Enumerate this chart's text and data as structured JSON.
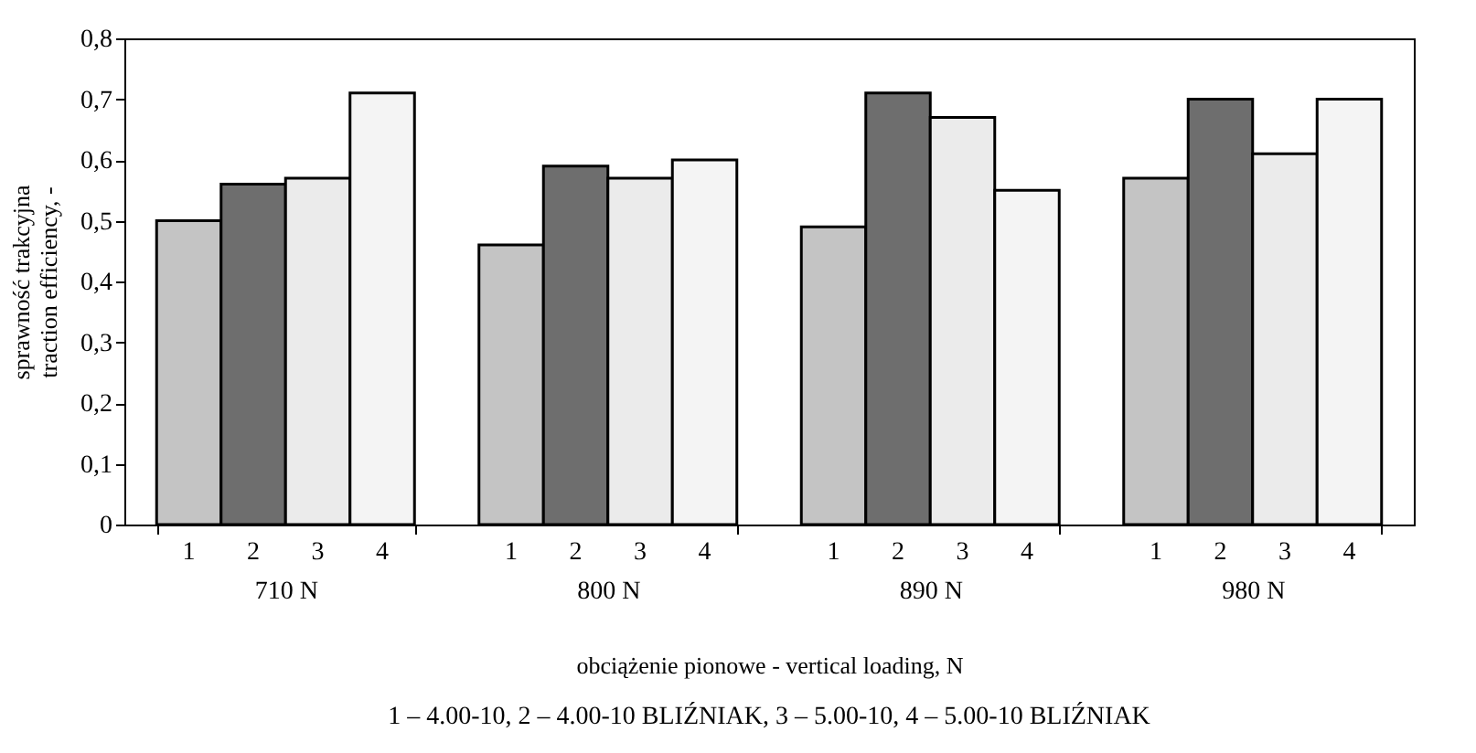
{
  "chart_data": {
    "type": "bar",
    "xlabel": "obciążenie pionowe - vertical loading, N",
    "ylabel": "sprawność trakcyjna\ntraction efficiency, -",
    "categories": [
      "710 N",
      "800 N",
      "890 N",
      "980 N"
    ],
    "series": [
      {
        "name": "1",
        "color": "#c4c4c4",
        "values": [
          0.5,
          0.46,
          0.49,
          0.57
        ]
      },
      {
        "name": "2",
        "color": "#6e6e6e",
        "values": [
          0.56,
          0.59,
          0.71,
          0.7
        ]
      },
      {
        "name": "3",
        "color": "#ebebeb",
        "values": [
          0.57,
          0.57,
          0.67,
          0.61
        ]
      },
      {
        "name": "4",
        "color": "#f4f4f4",
        "values": [
          0.71,
          0.6,
          0.55,
          0.7
        ]
      }
    ],
    "ylim": [
      0,
      0.8
    ],
    "yticks": [
      {
        "value": 0,
        "label": "0"
      },
      {
        "value": 0.1,
        "label": "0,1"
      },
      {
        "value": 0.2,
        "label": "0,2"
      },
      {
        "value": 0.3,
        "label": "0,3"
      },
      {
        "value": 0.4,
        "label": "0,4"
      },
      {
        "value": 0.5,
        "label": "0,5"
      },
      {
        "value": 0.6,
        "label": "0,6"
      },
      {
        "value": 0.7,
        "label": "0,7"
      },
      {
        "value": 0.8,
        "label": "0,8"
      }
    ],
    "annotations": [
      "1 – 4.00-10,   2 – 4.00-10 BLIŹNIAK,   3 – 5.00-10,   4 – 5.00-10 BLIŹNIAK"
    ]
  }
}
